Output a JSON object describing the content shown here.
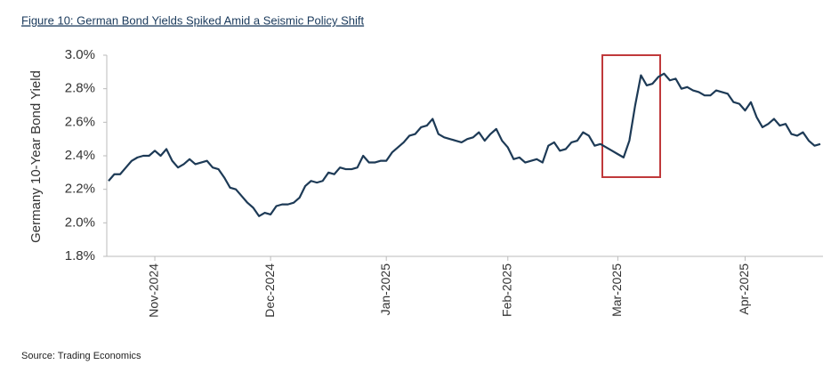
{
  "chart_data": {
    "type": "line",
    "title": "Figure 10: German Bond Yields Spiked Amid a Seismic Policy Shift",
    "ylabel": "Germany 10-Year Bond Yield",
    "source": "Source: Trading Economics",
    "ylim": [
      1.8,
      3.0
    ],
    "yticks": [
      {
        "value": 1.8,
        "label": "1.8%"
      },
      {
        "value": 2.0,
        "label": "2.0%"
      },
      {
        "value": 2.2,
        "label": "2.2%"
      },
      {
        "value": 2.4,
        "label": "2.4%"
      },
      {
        "value": 2.6,
        "label": "2.6%"
      },
      {
        "value": 2.8,
        "label": "2.8%"
      },
      {
        "value": 3.0,
        "label": "3.0%"
      }
    ],
    "categories": [
      null,
      null,
      null,
      null,
      null,
      null,
      null,
      null,
      "Nov-2024",
      null,
      null,
      null,
      null,
      null,
      null,
      null,
      null,
      null,
      null,
      null,
      null,
      null,
      null,
      null,
      null,
      null,
      null,
      null,
      "Dec-2024",
      null,
      null,
      null,
      null,
      null,
      null,
      null,
      null,
      null,
      null,
      null,
      null,
      null,
      null,
      null,
      null,
      null,
      null,
      null,
      "Jan-2025",
      null,
      null,
      null,
      null,
      null,
      null,
      null,
      null,
      null,
      null,
      null,
      null,
      null,
      null,
      null,
      null,
      null,
      null,
      null,
      null,
      "Feb-2025",
      null,
      null,
      null,
      null,
      null,
      null,
      null,
      null,
      null,
      null,
      null,
      null,
      null,
      null,
      null,
      null,
      null,
      null,
      "Mar-2025",
      null,
      null,
      null,
      null,
      null,
      null,
      null,
      null,
      null,
      null,
      null,
      null,
      null,
      null,
      null,
      null,
      null,
      null,
      null,
      null,
      null,
      "Apr-2025",
      null,
      null,
      null,
      null,
      null,
      null,
      null,
      null,
      null,
      null,
      null,
      null,
      null
    ],
    "series": [
      {
        "name": "Germany 10-Year Bond Yield",
        "color": "#1d3a56",
        "values": [
          2.25,
          2.29,
          2.29,
          2.33,
          2.37,
          2.39,
          2.4,
          2.4,
          2.43,
          2.4,
          2.44,
          2.37,
          2.33,
          2.35,
          2.38,
          2.35,
          2.36,
          2.37,
          2.33,
          2.32,
          2.27,
          2.21,
          2.2,
          2.16,
          2.12,
          2.09,
          2.04,
          2.06,
          2.05,
          2.1,
          2.11,
          2.11,
          2.12,
          2.15,
          2.22,
          2.25,
          2.24,
          2.25,
          2.3,
          2.29,
          2.33,
          2.32,
          2.32,
          2.33,
          2.4,
          2.36,
          2.36,
          2.37,
          2.37,
          2.42,
          2.45,
          2.48,
          2.52,
          2.53,
          2.57,
          2.58,
          2.62,
          2.53,
          2.51,
          2.5,
          2.49,
          2.48,
          2.5,
          2.51,
          2.54,
          2.49,
          2.53,
          2.56,
          2.49,
          2.45,
          2.38,
          2.39,
          2.36,
          2.37,
          2.38,
          2.36,
          2.46,
          2.48,
          2.43,
          2.44,
          2.48,
          2.49,
          2.54,
          2.52,
          2.46,
          2.47,
          2.45,
          2.43,
          2.41,
          2.39,
          2.49,
          2.7,
          2.88,
          2.82,
          2.83,
          2.87,
          2.89,
          2.85,
          2.86,
          2.8,
          2.81,
          2.79,
          2.78,
          2.76,
          2.76,
          2.79,
          2.78,
          2.77,
          2.72,
          2.71,
          2.67,
          2.72,
          2.63,
          2.57,
          2.59,
          2.62,
          2.58,
          2.59,
          2.53,
          2.52,
          2.54,
          2.49,
          2.46,
          2.47
        ]
      }
    ]
  }
}
